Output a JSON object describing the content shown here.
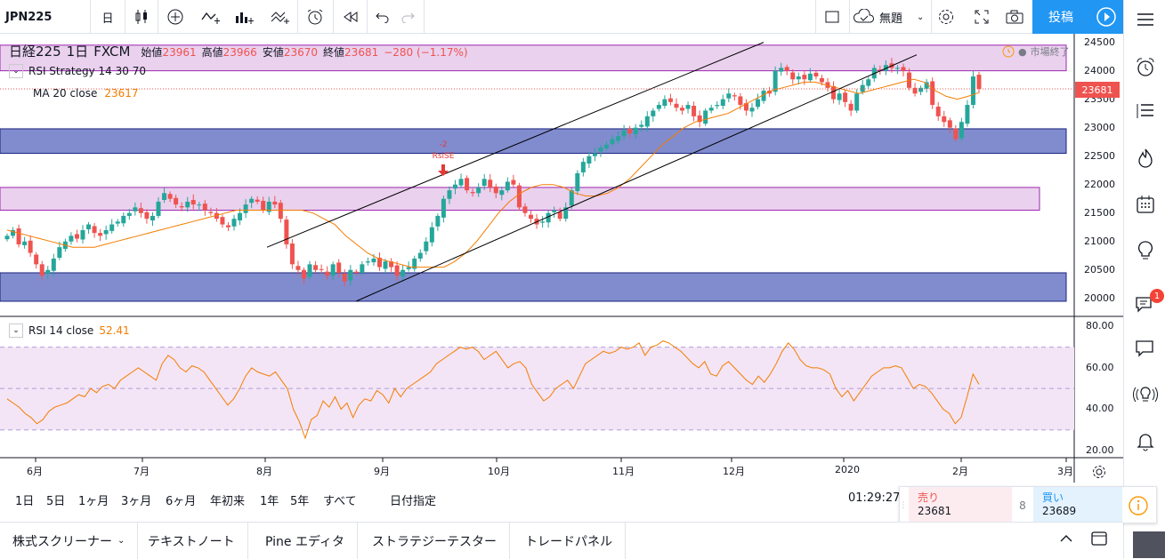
{
  "toolbar": {
    "symbol": "JPN225",
    "interval": "日",
    "alert_label": "無題",
    "publish_label": "投稿"
  },
  "legend": {
    "symbol_name": "日経225",
    "interval": "1日",
    "source": "FXCM",
    "open_label": "始値",
    "open": "23961",
    "high_label": "高値",
    "high": "23966",
    "low_label": "安値",
    "low": "23670",
    "close_label": "終値",
    "close": "23681",
    "change": "−280 (−1.17%)",
    "market_status": "市場終了",
    "strategy": "RSI Strategy 14 30 70",
    "ma_label": "MA 20 close",
    "ma_value": "23617",
    "rsi_label": "RSI 14 close",
    "rsi_value": "52.41"
  },
  "signal": {
    "qty": "-2",
    "label": "RsiSE"
  },
  "price_axis": {
    "ticks": [
      "24500",
      "24000",
      "23500",
      "23000",
      "22500",
      "22000",
      "21500",
      "21000",
      "20500",
      "20000"
    ],
    "last_price": "23681"
  },
  "rsi_axis": {
    "ticks": [
      "80.00",
      "60.00",
      "40.00",
      "20.00"
    ]
  },
  "time_axis": {
    "ticks": [
      "6月",
      "7月",
      "8月",
      "9月",
      "10月",
      "11月",
      "12月",
      "2020",
      "2月",
      "3月"
    ]
  },
  "range_bar": {
    "buttons": [
      "1日",
      "5日",
      "1ヶ月",
      "3ヶ月",
      "6ヶ月",
      "年初来",
      "1年",
      "5年",
      "すべて"
    ],
    "goto_label": "日付指定",
    "clock": "01:29:27"
  },
  "trade_widget": {
    "sell_label": "売り",
    "sell_price": "23681",
    "spread": "8",
    "buy_label": "買い",
    "buy_price": "23689"
  },
  "bottom_tabs": [
    "株式スクリーナー",
    "テキストノート",
    "Pine エディタ",
    "ストラテジーテスター",
    "トレードパネル"
  ],
  "sidebar_badge": "1",
  "colors": {
    "up": "#26a69a",
    "down": "#ef5350",
    "ma": "#f57c00",
    "rsi": "#f57c00",
    "accent": "#2196f3"
  },
  "chart_data": {
    "type": "candlestick",
    "note_series": "approximate daily closes read from chart",
    "price_ylim": [
      19700,
      24650
    ],
    "rsi_ylim": [
      17,
      84
    ],
    "rsi_band": [
      30,
      70
    ],
    "bands": [
      {
        "color": "#e1bee7",
        "from": 24000,
        "to": 24450
      },
      {
        "color": "#7986cb",
        "from": 22550,
        "to": 22980
      },
      {
        "color": "#e1bee7",
        "from": 21550,
        "to": 21950
      },
      {
        "color": "#7986cb",
        "from": 19950,
        "to": 20450
      }
    ],
    "closes": [
      21100,
      21200,
      20950,
      21000,
      20800,
      20600,
      20400,
      20500,
      20700,
      20900,
      21000,
      21100,
      21050,
      21200,
      21300,
      21150,
      21100,
      21200,
      21300,
      21350,
      21450,
      21500,
      21600,
      21500,
      21400,
      21450,
      21700,
      21850,
      21750,
      21650,
      21600,
      21700,
      21650,
      21650,
      21550,
      21500,
      21400,
      21300,
      21250,
      21400,
      21500,
      21650,
      21750,
      21700,
      21550,
      21700,
      21650,
      21400,
      20950,
      20600,
      20500,
      20350,
      20600,
      20500,
      20500,
      20400,
      20600,
      20450,
      20300,
      20500,
      20450,
      20600,
      20650,
      20700,
      20550,
      20650,
      20550,
      20400,
      20500,
      20550,
      20700,
      20800,
      21000,
      21250,
      21450,
      21750,
      21900,
      22000,
      22100,
      21900,
      21850,
      21950,
      22100,
      21950,
      21850,
      21900,
      22050,
      22000,
      21600,
      21500,
      21400,
      21300,
      21350,
      21500,
      21550,
      21400,
      21600,
      21900,
      22200,
      22400,
      22500,
      22550,
      22650,
      22700,
      22800,
      22850,
      22950,
      22900,
      23000,
      23050,
      23200,
      23300,
      23400,
      23500,
      23450,
      23350,
      23300,
      23400,
      23200,
      23100,
      23300,
      23350,
      23400,
      23500,
      23600,
      23550,
      23400,
      23300,
      23350,
      23500,
      23650,
      23600,
      24000,
      24050,
      24000,
      23850,
      23900,
      23850,
      23950,
      23900,
      23800,
      23700,
      23500,
      23600,
      23450,
      23300,
      23600,
      23750,
      23850,
      24050,
      24000,
      24100,
      24050,
      24050,
      24000,
      23700,
      23600,
      23700,
      23800,
      23400,
      23200,
      23100,
      23000,
      22800,
      23100,
      23400,
      23900,
      23681
    ],
    "rsi": [
      45,
      43,
      41,
      38,
      36,
      33,
      35,
      39,
      41,
      42,
      43,
      45,
      47,
      46,
      50,
      48,
      51,
      52,
      50,
      54,
      56,
      58,
      60,
      58,
      56,
      54,
      62,
      66,
      64,
      60,
      58,
      61,
      60,
      58,
      54,
      50,
      46,
      42,
      45,
      50,
      56,
      60,
      58,
      57,
      56,
      58,
      54,
      50,
      40,
      34,
      26,
      35,
      37,
      44,
      41,
      46,
      40,
      43,
      36,
      42,
      45,
      44,
      49,
      47,
      43,
      50,
      46,
      50,
      52,
      54,
      56,
      58,
      62,
      64,
      66,
      68,
      70,
      69,
      70,
      68,
      64,
      66,
      68,
      64,
      60,
      62,
      63,
      60,
      52,
      48,
      44,
      46,
      50,
      52,
      54,
      50,
      56,
      62,
      64,
      66,
      68,
      67,
      68,
      70,
      69,
      70,
      72,
      66,
      70,
      71,
      73,
      72,
      70,
      68,
      65,
      62,
      60,
      63,
      57,
      56,
      61,
      63,
      60,
      57,
      54,
      52,
      56,
      53,
      57,
      62,
      68,
      72,
      69,
      64,
      61,
      60,
      60,
      59,
      57,
      50,
      46,
      49,
      44,
      48,
      52,
      56,
      58,
      60,
      60,
      61,
      60,
      55,
      50,
      52,
      51,
      48,
      44,
      40,
      38,
      33,
      36,
      46,
      57,
      52
    ],
    "ma20_approx": [
      21200,
      21150,
      21100,
      21050,
      21000,
      20950,
      20900,
      20900,
      20900,
      20950,
      21000,
      21050,
      21100,
      21150,
      21200,
      21250,
      21300,
      21350,
      21400,
      21450,
      21500,
      21550,
      21550,
      21550,
      21550,
      21550,
      21550,
      21550,
      21500,
      21400,
      21300,
      21100,
      20950,
      20800,
      20700,
      20650,
      20600,
      20550,
      20550,
      20550,
      20550,
      20650,
      20800,
      21000,
      21250,
      21500,
      21700,
      21850,
      21950,
      22000,
      22000,
      21950,
      21850,
      21800,
      21800,
      21850,
      21950,
      22100,
      22300,
      22500,
      22700,
      22850,
      23000,
      23100,
      23150,
      23200,
      23250,
      23350,
      23450,
      23550,
      23650,
      23700,
      23750,
      23800,
      23800,
      23750,
      23700,
      23650,
      23600,
      23650,
      23700,
      23750,
      23800,
      23850,
      23800,
      23650,
      23550,
      23500,
      23550,
      23617
    ]
  }
}
